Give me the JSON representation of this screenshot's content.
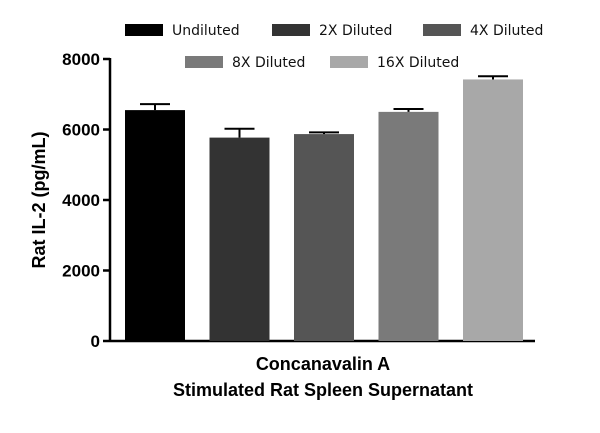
{
  "chart_data": {
    "type": "bar",
    "title": "",
    "xlabel": [
      "Concanavalin A",
      "Stimulated Rat Spleen Supernatant"
    ],
    "ylabel": "Rat IL-2 (pg/mL)",
    "ylim": [
      0,
      8000
    ],
    "yticks": [
      "0",
      "2000",
      "4000",
      "6000",
      "8000"
    ],
    "legend_position": "top",
    "series": [
      {
        "name": "Undiluted",
        "value": 6550,
        "error": 170,
        "color": "#000000"
      },
      {
        "name": "2X Diluted",
        "value": 5770,
        "error": 250,
        "color": "#333333"
      },
      {
        "name": "4X Diluted",
        "value": 5870,
        "error": 50,
        "color": "#555555"
      },
      {
        "name": "8X Diluted",
        "value": 6500,
        "error": 80,
        "color": "#7a7a7a"
      },
      {
        "name": "16X Diluted",
        "value": 7420,
        "error": 90,
        "color": "#a8a8a8"
      }
    ]
  }
}
